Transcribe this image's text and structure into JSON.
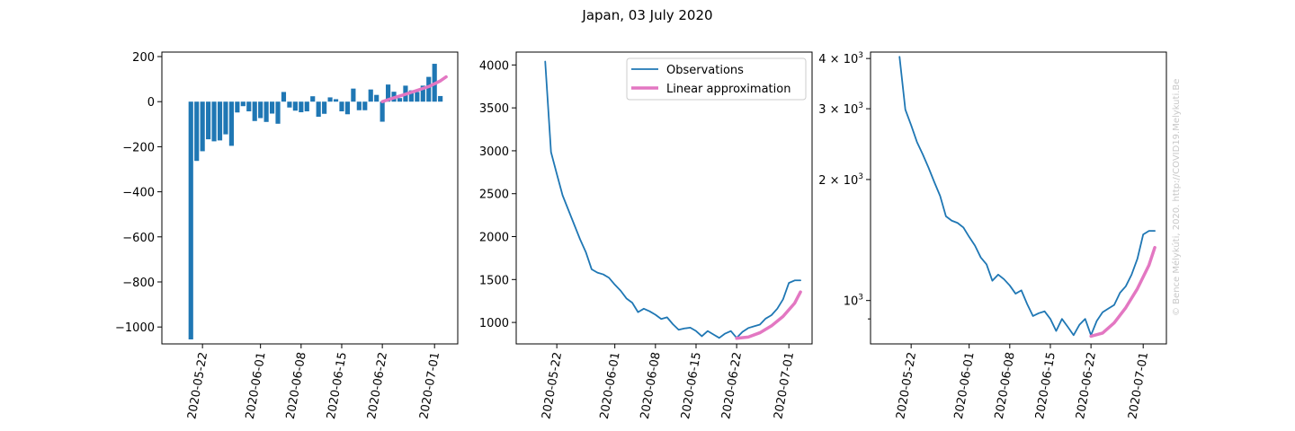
{
  "title": "Japan, 03 July 2020",
  "watermark": "© Bence Mélykúti, 2020. http://COVID19.Melykuti.Be",
  "colors": {
    "observations": "#1f77b4",
    "approximation": "#e377c2"
  },
  "chart_data": [
    {
      "type": "bar",
      "x_tick_labels": [
        "2020-05-22",
        "2020-06-01",
        "2020-06-08",
        "2020-06-15",
        "2020-06-22",
        "2020-07-01"
      ],
      "dates": [
        "2020-05-20",
        "2020-05-21",
        "2020-05-22",
        "2020-05-23",
        "2020-05-24",
        "2020-05-25",
        "2020-05-26",
        "2020-05-27",
        "2020-05-28",
        "2020-05-29",
        "2020-05-30",
        "2020-05-31",
        "2020-06-01",
        "2020-06-02",
        "2020-06-03",
        "2020-06-04",
        "2020-06-05",
        "2020-06-06",
        "2020-06-07",
        "2020-06-08",
        "2020-06-09",
        "2020-06-10",
        "2020-06-11",
        "2020-06-12",
        "2020-06-13",
        "2020-06-14",
        "2020-06-15",
        "2020-06-16",
        "2020-06-17",
        "2020-06-18",
        "2020-06-19",
        "2020-06-20",
        "2020-06-21",
        "2020-06-22",
        "2020-06-23",
        "2020-06-24",
        "2020-06-25",
        "2020-06-26",
        "2020-06-27",
        "2020-06-28",
        "2020-06-29",
        "2020-06-30",
        "2020-07-01",
        "2020-07-02",
        "2020-07-03"
      ],
      "values": [
        -1055,
        -263,
        -220,
        -167,
        -176,
        -172,
        -145,
        -196,
        -48,
        -20,
        -43,
        -86,
        -73,
        -90,
        -53,
        -98,
        43,
        -26,
        -40,
        -47,
        -43,
        24,
        -67,
        -54,
        19,
        11,
        -43,
        -56,
        58,
        -38,
        -38,
        54,
        30,
        -89,
        76,
        44,
        16,
        71,
        50,
        43,
        71,
        110,
        168,
        25,
        0
      ],
      "line_series": [
        {
          "name": "Linear approximation",
          "x": [
            "2020-06-22",
            "2020-06-24",
            "2020-06-26",
            "2020-06-28",
            "2020-06-30",
            "2020-07-02",
            "2020-07-03"
          ],
          "values": [
            0,
            17,
            33,
            50,
            67,
            92,
            110
          ]
        }
      ],
      "y_ticks": [
        200,
        0,
        -200,
        -400,
        -600,
        -800,
        -1000
      ],
      "ylim": [
        -1075,
        220
      ],
      "xlim": [
        "2020-05-15",
        "2020-07-05"
      ]
    },
    {
      "type": "line",
      "x_tick_labels": [
        "2020-05-22",
        "2020-06-01",
        "2020-06-08",
        "2020-06-15",
        "2020-06-22",
        "2020-07-01"
      ],
      "legend": [
        "Observations",
        "Linear approximation"
      ],
      "legend_position": "top-right",
      "series": [
        {
          "name": "Observations",
          "x": [
            "2020-05-20",
            "2020-05-21",
            "2020-05-22",
            "2020-05-23",
            "2020-05-24",
            "2020-05-25",
            "2020-05-26",
            "2020-05-27",
            "2020-05-28",
            "2020-05-29",
            "2020-05-30",
            "2020-05-31",
            "2020-06-01",
            "2020-06-02",
            "2020-06-03",
            "2020-06-04",
            "2020-06-05",
            "2020-06-06",
            "2020-06-07",
            "2020-06-08",
            "2020-06-09",
            "2020-06-10",
            "2020-06-11",
            "2020-06-12",
            "2020-06-13",
            "2020-06-14",
            "2020-06-15",
            "2020-06-16",
            "2020-06-17",
            "2020-06-18",
            "2020-06-19",
            "2020-06-20",
            "2020-06-21",
            "2020-06-22",
            "2020-06-23",
            "2020-06-24",
            "2020-06-25",
            "2020-06-26",
            "2020-06-27",
            "2020-06-28",
            "2020-06-29",
            "2020-06-30",
            "2020-07-01",
            "2020-07-02",
            "2020-07-03"
          ],
          "values": [
            4040,
            2985,
            2730,
            2480,
            2310,
            2140,
            1970,
            1820,
            1620,
            1580,
            1560,
            1520,
            1440,
            1370,
            1280,
            1230,
            1120,
            1160,
            1130,
            1090,
            1040,
            1060,
            980,
            915,
            930,
            940,
            900,
            840,
            900,
            860,
            820,
            870,
            900,
            820,
            890,
            935,
            955,
            975,
            1045,
            1085,
            1160,
            1270,
            1460,
            1490,
            1490
          ]
        },
        {
          "name": "Linear approximation",
          "x": [
            "2020-06-22",
            "2020-06-24",
            "2020-06-26",
            "2020-06-28",
            "2020-06-30",
            "2020-07-02",
            "2020-07-03"
          ],
          "values": [
            815,
            830,
            880,
            960,
            1070,
            1225,
            1355
          ]
        }
      ],
      "y_ticks": [
        4000,
        3500,
        3000,
        2500,
        2000,
        1500,
        1000
      ],
      "ylim": [
        750,
        4150
      ],
      "xlim": [
        "2020-05-15",
        "2020-07-05"
      ]
    },
    {
      "type": "line",
      "yscale": "log",
      "x_tick_labels": [
        "2020-05-22",
        "2020-06-01",
        "2020-06-08",
        "2020-06-15",
        "2020-06-22",
        "2020-07-01"
      ],
      "y_tick_labels": [
        {
          "value": 4000,
          "base": "4 × 10",
          "exp": "3"
        },
        {
          "value": 3000,
          "base": "3 × 10",
          "exp": "3"
        },
        {
          "value": 2000,
          "base": "2 × 10",
          "exp": "3"
        },
        {
          "value": 1000,
          "base": "10",
          "exp": "3"
        }
      ],
      "y_minor_ticks": [
        900
      ],
      "series": [
        {
          "name": "Observations",
          "x": [
            "2020-05-20",
            "2020-05-21",
            "2020-05-22",
            "2020-05-23",
            "2020-05-24",
            "2020-05-25",
            "2020-05-26",
            "2020-05-27",
            "2020-05-28",
            "2020-05-29",
            "2020-05-30",
            "2020-05-31",
            "2020-06-01",
            "2020-06-02",
            "2020-06-03",
            "2020-06-04",
            "2020-06-05",
            "2020-06-06",
            "2020-06-07",
            "2020-06-08",
            "2020-06-09",
            "2020-06-10",
            "2020-06-11",
            "2020-06-12",
            "2020-06-13",
            "2020-06-14",
            "2020-06-15",
            "2020-06-16",
            "2020-06-17",
            "2020-06-18",
            "2020-06-19",
            "2020-06-20",
            "2020-06-21",
            "2020-06-22",
            "2020-06-23",
            "2020-06-24",
            "2020-06-25",
            "2020-06-26",
            "2020-06-27",
            "2020-06-28",
            "2020-06-29",
            "2020-06-30",
            "2020-07-01",
            "2020-07-02",
            "2020-07-03"
          ],
          "values": [
            4040,
            2985,
            2730,
            2480,
            2310,
            2140,
            1970,
            1820,
            1620,
            1580,
            1560,
            1520,
            1440,
            1370,
            1280,
            1230,
            1120,
            1160,
            1130,
            1090,
            1040,
            1060,
            980,
            915,
            930,
            940,
            900,
            840,
            900,
            860,
            820,
            870,
            900,
            820,
            890,
            935,
            955,
            975,
            1045,
            1085,
            1160,
            1270,
            1460,
            1490,
            1490
          ]
        },
        {
          "name": "Linear approximation",
          "x": [
            "2020-06-22",
            "2020-06-24",
            "2020-06-26",
            "2020-06-28",
            "2020-06-30",
            "2020-07-02",
            "2020-07-03"
          ],
          "values": [
            815,
            830,
            880,
            960,
            1070,
            1225,
            1355
          ]
        }
      ],
      "ylim": [
        780,
        4150
      ],
      "xlim": [
        "2020-05-15",
        "2020-07-05"
      ]
    }
  ]
}
